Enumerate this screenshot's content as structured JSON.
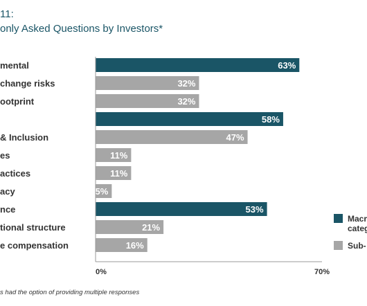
{
  "chart_data": {
    "type": "bar",
    "orientation": "horizontal",
    "title_line1": "11:",
    "title_line2": "only Asked Questions by Investors*",
    "categories": [
      "mental",
      "change risks",
      "ootprint",
      "",
      "& Inclusion",
      "es",
      "actices",
      "acy",
      "nce",
      "tional structure",
      "e compensation"
    ],
    "values": [
      63,
      32,
      32,
      58,
      47,
      11,
      11,
      5,
      53,
      21,
      16
    ],
    "value_labels": [
      "63%",
      "32%",
      "32%",
      "58%",
      "47%",
      "11%",
      "11%",
      "5%",
      "53%",
      "21%",
      "16%"
    ],
    "bar_type": [
      "macro",
      "sub",
      "sub",
      "macro",
      "sub",
      "sub",
      "sub",
      "sub",
      "macro",
      "sub",
      "sub"
    ],
    "xlim": [
      0,
      70
    ],
    "x_ticks": [
      "0%",
      "70%"
    ],
    "grid": false,
    "legend_position": "right",
    "legend": [
      {
        "key": "macro",
        "label_line1": "Macr",
        "label_line2": "categ",
        "color": "#1a5566"
      },
      {
        "key": "sub",
        "label_line1": "Sub-",
        "label_line2": "",
        "color": "#a6a6a6"
      }
    ],
    "colors": {
      "macro": "#1a5566",
      "sub": "#a6a6a6",
      "title": "#1a5566",
      "text": "#333333"
    },
    "footnote": "s had the option of providing multiple responses"
  }
}
